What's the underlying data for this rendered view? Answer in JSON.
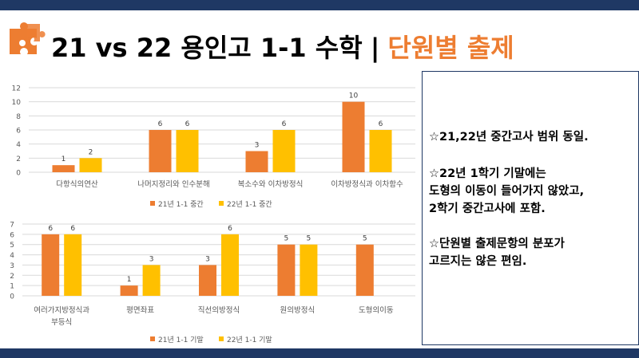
{
  "title": {
    "main": "21 vs 22 용인고 1-1 수학",
    "separator": "|",
    "sub": "단원별 출제"
  },
  "colors": {
    "accent_orange": "#ed7d31",
    "accent_yellow": "#ffc000",
    "navy": "#1f3864"
  },
  "icons": {
    "logo": "puzzle-icon"
  },
  "notes": {
    "line1": "☆21,22년 중간고사 범위 동일.",
    "line2": "☆22년 1학기 기말에는",
    "line3": "도형의 이동이 들어가지 않았고,",
    "line4": "2학기 중간고사에 포함.",
    "line5": "☆단원별 출제문항의 분포가",
    "line6": "고르지는 않은 편임."
  },
  "chart_data": [
    {
      "type": "bar",
      "categories": [
        "다항식의연산",
        "나머지정리와 인수분해",
        "복소수와 이차방정식",
        "이차방정식과 이차함수"
      ],
      "series": [
        {
          "name": "21년 1-1 중간",
          "values": [
            1,
            6,
            3,
            10
          ],
          "color": "#ed7d31"
        },
        {
          "name": "22년 1-1 중간",
          "values": [
            2,
            6,
            6,
            6
          ],
          "color": "#ffc000"
        }
      ],
      "yticks": [
        0,
        2,
        4,
        6,
        8,
        10,
        12
      ],
      "ylim": [
        0,
        12
      ],
      "grid": true,
      "legend": "bottom",
      "data_labels": true
    },
    {
      "type": "bar",
      "categories": [
        "여러가지방정식과 부등식",
        "평면좌표",
        "직선의방정식",
        "원의방정식",
        "도형의이동"
      ],
      "series": [
        {
          "name": "21년 1-1 기말",
          "values": [
            6,
            1,
            3,
            5,
            5
          ],
          "color": "#ed7d31"
        },
        {
          "name": "22년 1-1 기말",
          "values": [
            6,
            3,
            6,
            5,
            null
          ],
          "color": "#ffc000"
        }
      ],
      "yticks": [
        0,
        1,
        2,
        3,
        4,
        5,
        6,
        7
      ],
      "ylim": [
        0,
        7
      ],
      "grid": true,
      "legend": "bottom",
      "data_labels": true
    }
  ]
}
